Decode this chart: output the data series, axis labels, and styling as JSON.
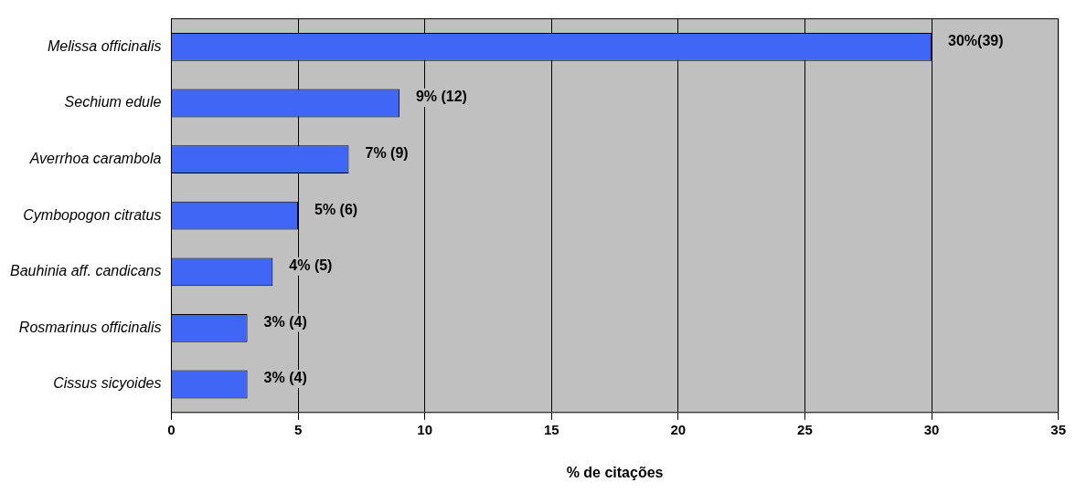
{
  "chart_data": {
    "type": "bar",
    "orientation": "horizontal",
    "xlabel": "% de citações",
    "categories": [
      "Melissa officinalis",
      "Sechium edule",
      "Averrhoa carambola",
      "Cymbopogon citratus",
      "Bauhinia aff. candicans",
      "Rosmarinus officinalis",
      "Cissus sicyoides"
    ],
    "values": [
      30,
      9,
      7,
      5,
      4,
      3,
      3
    ],
    "value_labels": [
      "30%(39)",
      "9% (12)",
      "7% (9)",
      "5% (6)",
      "4% (5)",
      "3% (4)",
      "3% (4)"
    ],
    "color": "#3f66f5",
    "xlim": [
      0,
      35
    ],
    "xticks": [
      0,
      5,
      10,
      15,
      20,
      25,
      30,
      35
    ],
    "grid": "x",
    "legend": false
  }
}
